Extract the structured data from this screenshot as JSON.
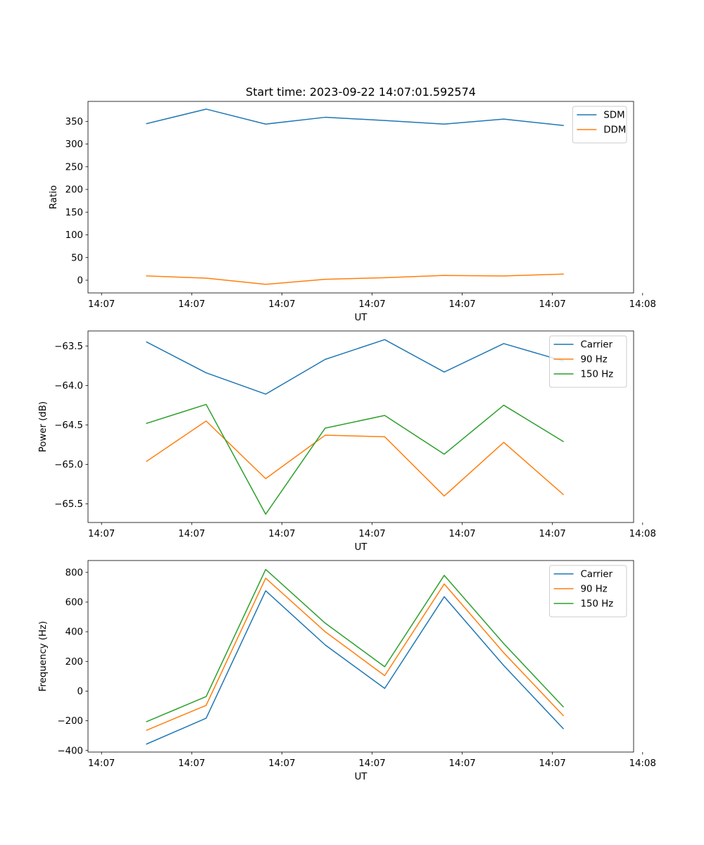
{
  "chart_data": [
    {
      "type": "line",
      "title": "Start time: 2023-09-22 14:07:01.592574",
      "xlabel": "UT",
      "ylabel": "Ratio",
      "x": [
        0.5,
        1.16,
        1.82,
        2.48,
        3.14,
        3.8,
        4.46,
        5.12
      ],
      "xlim": [
        -0.15,
        5.9
      ],
      "x_ticks": [
        0,
        1,
        2,
        3,
        4,
        5,
        6
      ],
      "x_tick_labels": [
        "14:07",
        "14:07",
        "14:07",
        "14:07",
        "14:07",
        "14:07",
        "14:08"
      ],
      "ylim": [
        -28,
        394
      ],
      "y_ticks": [
        0,
        50,
        100,
        150,
        200,
        250,
        300,
        350
      ],
      "legend_loc": "upper right",
      "series": [
        {
          "name": "SDM",
          "color": "#1f77b4",
          "values": [
            345,
            377,
            344,
            359,
            352,
            344,
            355,
            341
          ]
        },
        {
          "name": "DDM",
          "color": "#ff7f0e",
          "values": [
            9.5,
            4.5,
            -9.0,
            2.0,
            5.5,
            10.5,
            9.5,
            13.5
          ]
        }
      ]
    },
    {
      "type": "line",
      "title": "",
      "xlabel": "UT",
      "ylabel": "Power (dB)",
      "x": [
        0.5,
        1.16,
        1.82,
        2.48,
        3.14,
        3.8,
        4.46,
        5.12
      ],
      "xlim": [
        -0.15,
        5.9
      ],
      "x_ticks": [
        0,
        1,
        2,
        3,
        4,
        5,
        6
      ],
      "x_tick_labels": [
        "14:07",
        "14:07",
        "14:07",
        "14:07",
        "14:07",
        "14:07",
        "14:08"
      ],
      "ylim": [
        -65.735,
        -63.31
      ],
      "y_ticks": [
        -65.5,
        -65.0,
        -64.5,
        -64.0,
        -63.5
      ],
      "y_tick_labels": [
        "−65.5",
        "−65.0",
        "−64.5",
        "−64.0",
        "−63.5"
      ],
      "legend_loc": "upper right",
      "series": [
        {
          "name": "Carrier",
          "color": "#1f77b4",
          "values": [
            -63.45,
            -63.84,
            -64.11,
            -63.67,
            -63.42,
            -63.83,
            -63.47,
            -63.69
          ]
        },
        {
          "name": "90 Hz",
          "color": "#ff7f0e",
          "values": [
            -64.96,
            -64.45,
            -65.18,
            -64.63,
            -64.65,
            -65.4,
            -64.72,
            -65.38
          ]
        },
        {
          "name": "150 Hz",
          "color": "#2ca02c",
          "values": [
            -64.48,
            -64.24,
            -65.63,
            -64.54,
            -64.38,
            -64.87,
            -64.25,
            -64.71
          ]
        }
      ]
    },
    {
      "type": "line",
      "title": "",
      "xlabel": "UT",
      "ylabel": "Frequency (Hz)",
      "x": [
        0.5,
        1.16,
        1.82,
        2.48,
        3.14,
        3.8,
        4.46,
        5.12
      ],
      "xlim": [
        -0.15,
        5.9
      ],
      "x_ticks": [
        0,
        1,
        2,
        3,
        4,
        5,
        6
      ],
      "x_tick_labels": [
        "14:07",
        "14:07",
        "14:07",
        "14:07",
        "14:07",
        "14:07",
        "14:08"
      ],
      "ylim": [
        -411,
        880
      ],
      "y_ticks": [
        -400,
        -200,
        0,
        200,
        400,
        600,
        800
      ],
      "y_tick_labels": [
        "−400",
        "−200",
        "0",
        "200",
        "400",
        "600",
        "800"
      ],
      "legend_loc": "upper right",
      "series": [
        {
          "name": "Carrier",
          "color": "#1f77b4",
          "values": [
            -357,
            -183,
            676,
            311,
            18,
            636,
            172,
            -253
          ]
        },
        {
          "name": "90 Hz",
          "color": "#ff7f0e",
          "values": [
            -264,
            -96,
            761,
            400,
            104,
            722,
            258,
            -165
          ]
        },
        {
          "name": "150 Hz",
          "color": "#2ca02c",
          "values": [
            -206,
            -37,
            820,
            458,
            164,
            780,
            320,
            -106
          ]
        }
      ]
    }
  ]
}
